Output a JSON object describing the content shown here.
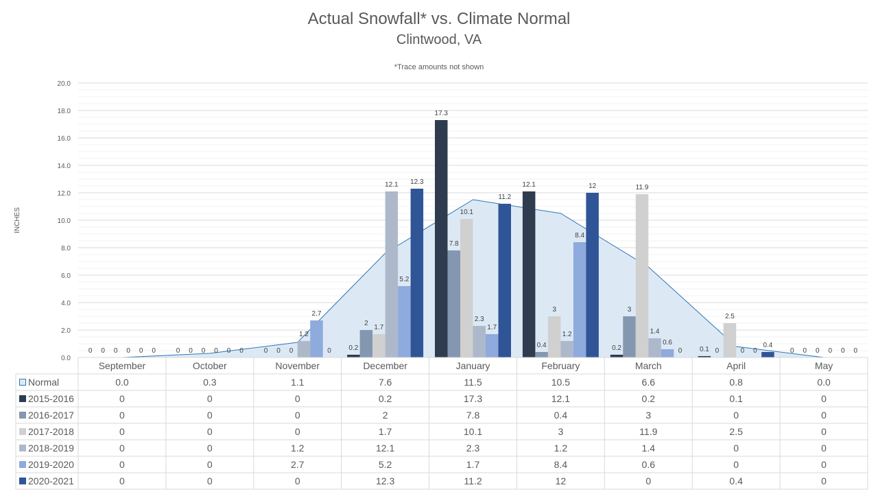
{
  "chart_data": {
    "type": "bar",
    "title": "Actual Snowfall* vs. Climate Normal",
    "subtitle": "Clintwood, VA",
    "note": "*Trace amounts not shown",
    "ylabel": "INCHES",
    "ylim": [
      0,
      20
    ],
    "ytick_labels": [
      "0.0",
      "2.0",
      "4.0",
      "6.0",
      "8.0",
      "10.0",
      "12.0",
      "14.0",
      "16.0",
      "18.0",
      "20.0"
    ],
    "categories": [
      "September",
      "October",
      "November",
      "December",
      "January",
      "February",
      "March",
      "April",
      "May"
    ],
    "normal": {
      "name": "Normal",
      "type": "area",
      "color": "#dce9f5",
      "line_color": "#2e75b6",
      "values": [
        0.0,
        0.3,
        1.1,
        7.6,
        11.5,
        10.5,
        6.6,
        0.8,
        0.0
      ],
      "display": [
        "0.0",
        "0.3",
        "1.1",
        "7.6",
        "11.5",
        "10.5",
        "6.6",
        "0.8",
        "0.0"
      ]
    },
    "series": [
      {
        "name": "2015-2016",
        "color": "#2f3c4f",
        "values": [
          0,
          0,
          0,
          0.2,
          17.3,
          12.1,
          0.2,
          0.1,
          0
        ],
        "display": [
          "0",
          "0",
          "0",
          "0.2",
          "17.3",
          "12.1",
          "0.2",
          "0.1",
          "0"
        ]
      },
      {
        "name": "2016-2017",
        "color": "#8497b0",
        "values": [
          0,
          0,
          0,
          2,
          7.8,
          0.4,
          3,
          0,
          0
        ],
        "display": [
          "0",
          "0",
          "0",
          "2",
          "7.8",
          "0.4",
          "3",
          "0",
          "0"
        ]
      },
      {
        "name": "2017-2018",
        "color": "#d0d0d0",
        "values": [
          0,
          0,
          0,
          1.7,
          10.1,
          3,
          11.9,
          2.5,
          0
        ],
        "display": [
          "0",
          "0",
          "0",
          "1.7",
          "10.1",
          "3",
          "11.9",
          "2.5",
          "0"
        ]
      },
      {
        "name": "2018-2019",
        "color": "#adb9ca",
        "values": [
          0,
          0,
          1.2,
          12.1,
          2.3,
          1.2,
          1.4,
          0,
          0
        ],
        "display": [
          "0",
          "0",
          "1.2",
          "12.1",
          "2.3",
          "1.2",
          "1.4",
          "0",
          "0"
        ]
      },
      {
        "name": "2019-2020",
        "color": "#8faadc",
        "values": [
          0,
          0,
          2.7,
          5.2,
          1.7,
          8.4,
          0.6,
          0,
          0
        ],
        "display": [
          "0",
          "0",
          "2.7",
          "5.2",
          "1.7",
          "8.4",
          "0.6",
          "0",
          "0"
        ]
      },
      {
        "name": "2020-2021",
        "color": "#2f5597",
        "values": [
          0,
          0,
          0,
          12.3,
          11.2,
          12,
          0,
          0.4,
          0
        ],
        "display": [
          "0",
          "0",
          "0",
          "12.3",
          "11.2",
          "12",
          "0",
          "0.4",
          "0"
        ]
      }
    ],
    "grid": true,
    "legend": "table-below"
  }
}
